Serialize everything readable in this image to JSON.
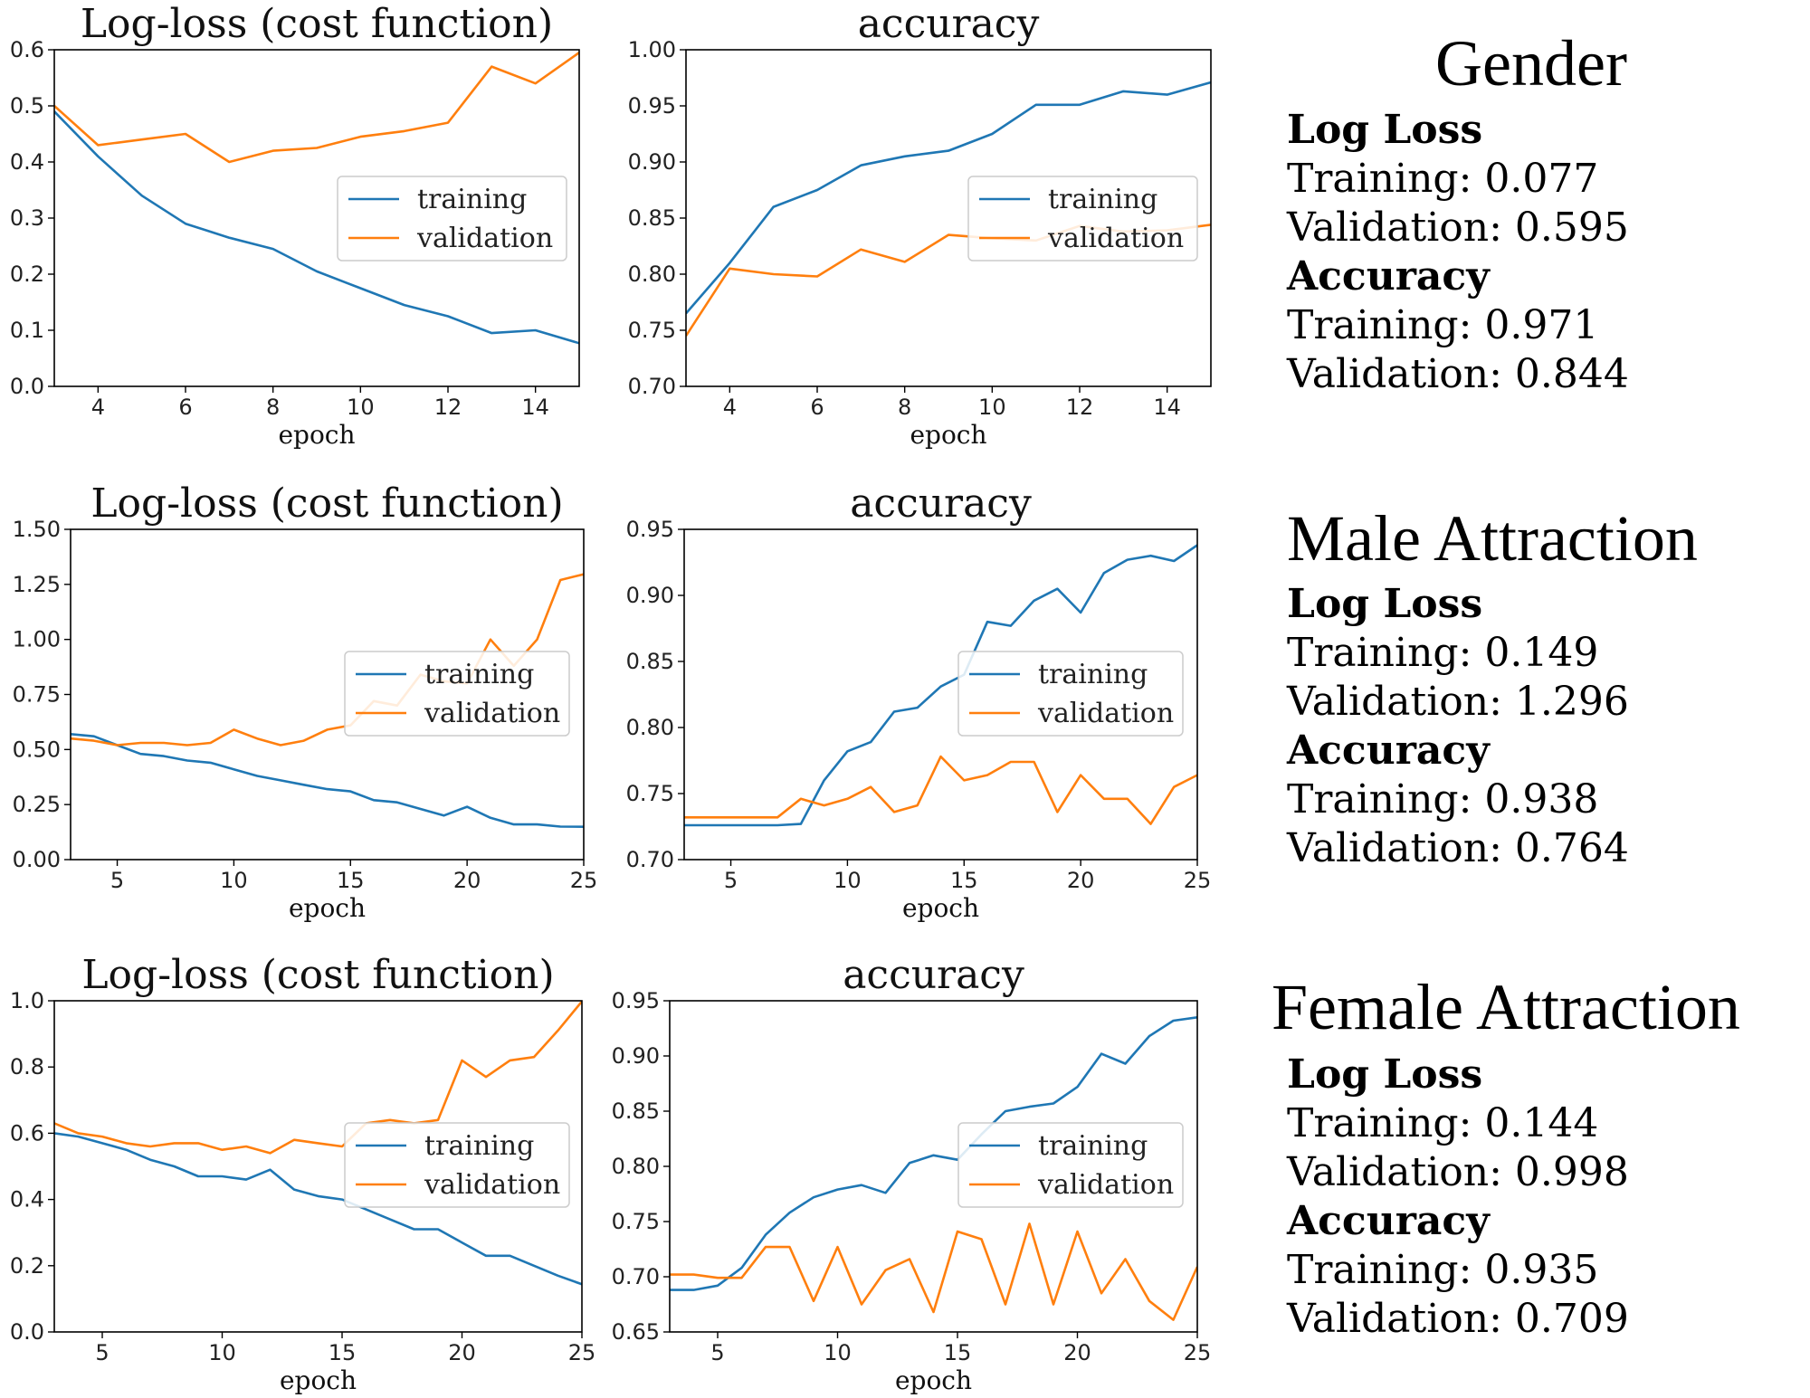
{
  "colors": {
    "training": "#1f77b4",
    "validation": "#ff7f0e",
    "frame": "#000000",
    "legend_border": "#cccccc"
  },
  "legend": {
    "training": "training",
    "validation": "validation"
  },
  "rows": [
    {
      "title": "Gender",
      "heading_loss": "Log Loss",
      "loss_training": "Training: 0.077",
      "loss_validation": "Validation: 0.595",
      "heading_acc": "Accuracy",
      "acc_training": "Training: 0.971",
      "acc_validation": "Validation: 0.844"
    },
    {
      "title": "Male Attraction",
      "heading_loss": "Log Loss",
      "loss_training": "Training: 0.149",
      "loss_validation": "Validation: 1.296",
      "heading_acc": "Accuracy",
      "acc_training": "Training: 0.938",
      "acc_validation": "Validation: 0.764"
    },
    {
      "title": "Female Attraction",
      "heading_loss": "Log Loss",
      "loss_training": "Training: 0.144",
      "loss_validation": "Validation: 0.998",
      "heading_acc": "Accuracy",
      "acc_training": "Training: 0.935",
      "acc_validation": "Validation: 0.709"
    }
  ],
  "chart_data": [
    {
      "type": "line",
      "title": "Log-loss (cost function)",
      "xlabel": "epoch",
      "ylabel": "",
      "xlim": [
        3,
        15
      ],
      "ylim": [
        0.0,
        0.6
      ],
      "xticks": [
        "4",
        "6",
        "8",
        "10",
        "12",
        "14"
      ],
      "yticks": [
        "0.0",
        "0.1",
        "0.2",
        "0.3",
        "0.4",
        "0.5",
        "0.6"
      ],
      "legend_position": "center-right",
      "x": [
        3,
        4,
        5,
        6,
        7,
        8,
        9,
        10,
        11,
        12,
        13,
        14,
        15
      ],
      "series": [
        {
          "name": "training",
          "values": [
            0.49,
            0.41,
            0.34,
            0.29,
            0.265,
            0.245,
            0.205,
            0.175,
            0.145,
            0.125,
            0.095,
            0.1,
            0.077
          ]
        },
        {
          "name": "validation",
          "values": [
            0.5,
            0.43,
            0.44,
            0.45,
            0.4,
            0.42,
            0.425,
            0.445,
            0.455,
            0.47,
            0.57,
            0.54,
            0.595
          ]
        }
      ]
    },
    {
      "type": "line",
      "title": "accuracy",
      "xlabel": "epoch",
      "ylabel": "",
      "xlim": [
        3,
        15
      ],
      "ylim": [
        0.7,
        1.0
      ],
      "xticks": [
        "4",
        "6",
        "8",
        "10",
        "12",
        "14"
      ],
      "yticks": [
        "0.70",
        "0.75",
        "0.80",
        "0.85",
        "0.90",
        "0.95",
        "1.00"
      ],
      "legend_position": "center-right",
      "x": [
        3,
        4,
        5,
        6,
        7,
        8,
        9,
        10,
        11,
        12,
        13,
        14,
        15
      ],
      "series": [
        {
          "name": "training",
          "values": [
            0.765,
            0.81,
            0.86,
            0.875,
            0.897,
            0.905,
            0.91,
            0.925,
            0.951,
            0.951,
            0.963,
            0.96,
            0.971
          ]
        },
        {
          "name": "validation",
          "values": [
            0.745,
            0.805,
            0.8,
            0.798,
            0.822,
            0.811,
            0.835,
            0.832,
            0.83,
            0.843,
            0.838,
            0.839,
            0.844
          ]
        }
      ]
    },
    {
      "type": "line",
      "title": "Log-loss (cost function)",
      "xlabel": "epoch",
      "ylabel": "",
      "xlim": [
        3,
        25
      ],
      "ylim": [
        0.0,
        1.5
      ],
      "xticks": [
        "5",
        "10",
        "15",
        "20",
        "25"
      ],
      "yticks": [
        "0.00",
        "0.25",
        "0.50",
        "0.75",
        "1.00",
        "1.25",
        "1.50"
      ],
      "legend_position": "center-right",
      "x": [
        3,
        4,
        5,
        6,
        7,
        8,
        9,
        10,
        11,
        12,
        13,
        14,
        15,
        16,
        17,
        18,
        19,
        20,
        21,
        22,
        23,
        24,
        25
      ],
      "series": [
        {
          "name": "training",
          "values": [
            0.57,
            0.56,
            0.52,
            0.48,
            0.47,
            0.45,
            0.44,
            0.41,
            0.38,
            0.36,
            0.34,
            0.32,
            0.31,
            0.27,
            0.26,
            0.23,
            0.2,
            0.24,
            0.19,
            0.16,
            0.16,
            0.15,
            0.149
          ]
        },
        {
          "name": "validation",
          "values": [
            0.55,
            0.54,
            0.52,
            0.53,
            0.53,
            0.52,
            0.53,
            0.59,
            0.55,
            0.52,
            0.54,
            0.59,
            0.61,
            0.72,
            0.7,
            0.84,
            0.81,
            0.8,
            1.0,
            0.88,
            1.0,
            1.27,
            1.296
          ]
        }
      ]
    },
    {
      "type": "line",
      "title": "accuracy",
      "xlabel": "epoch",
      "ylabel": "",
      "xlim": [
        3,
        25
      ],
      "ylim": [
        0.7,
        0.95
      ],
      "xticks": [
        "5",
        "10",
        "15",
        "20",
        "25"
      ],
      "yticks": [
        "0.70",
        "0.75",
        "0.80",
        "0.85",
        "0.90",
        "0.95"
      ],
      "legend_position": "center-right",
      "x": [
        3,
        4,
        5,
        6,
        7,
        8,
        9,
        10,
        11,
        12,
        13,
        14,
        15,
        16,
        17,
        18,
        19,
        20,
        21,
        22,
        23,
        24,
        25
      ],
      "series": [
        {
          "name": "training",
          "values": [
            0.726,
            0.726,
            0.726,
            0.726,
            0.726,
            0.727,
            0.76,
            0.782,
            0.789,
            0.812,
            0.815,
            0.831,
            0.84,
            0.88,
            0.877,
            0.896,
            0.905,
            0.887,
            0.917,
            0.927,
            0.93,
            0.926,
            0.938
          ]
        },
        {
          "name": "validation",
          "values": [
            0.732,
            0.732,
            0.732,
            0.732,
            0.732,
            0.746,
            0.741,
            0.746,
            0.755,
            0.736,
            0.741,
            0.778,
            0.76,
            0.764,
            0.774,
            0.774,
            0.736,
            0.764,
            0.746,
            0.746,
            0.727,
            0.755,
            0.764
          ]
        }
      ]
    },
    {
      "type": "line",
      "title": "Log-loss (cost function)",
      "xlabel": "epoch",
      "ylabel": "",
      "xlim": [
        3,
        25
      ],
      "ylim": [
        0.0,
        1.0
      ],
      "xticks": [
        "5",
        "10",
        "15",
        "20",
        "25"
      ],
      "yticks": [
        "0.0",
        "0.2",
        "0.4",
        "0.6",
        "0.8",
        "1.0"
      ],
      "legend_position": "center-right",
      "x": [
        3,
        4,
        5,
        6,
        7,
        8,
        9,
        10,
        11,
        12,
        13,
        14,
        15,
        16,
        17,
        18,
        19,
        20,
        21,
        22,
        23,
        24,
        25
      ],
      "series": [
        {
          "name": "training",
          "values": [
            0.6,
            0.59,
            0.57,
            0.55,
            0.52,
            0.5,
            0.47,
            0.47,
            0.46,
            0.49,
            0.43,
            0.41,
            0.4,
            0.37,
            0.34,
            0.31,
            0.31,
            0.27,
            0.23,
            0.23,
            0.2,
            0.17,
            0.144
          ]
        },
        {
          "name": "validation",
          "values": [
            0.63,
            0.6,
            0.59,
            0.57,
            0.56,
            0.57,
            0.57,
            0.55,
            0.56,
            0.54,
            0.58,
            0.57,
            0.56,
            0.63,
            0.64,
            0.63,
            0.64,
            0.82,
            0.77,
            0.82,
            0.83,
            0.91,
            0.998
          ]
        }
      ]
    },
    {
      "type": "line",
      "title": "accuracy",
      "xlabel": "epoch",
      "ylabel": "",
      "xlim": [
        3,
        25
      ],
      "ylim": [
        0.65,
        0.95
      ],
      "xticks": [
        "5",
        "10",
        "15",
        "20",
        "25"
      ],
      "yticks": [
        "0.65",
        "0.70",
        "0.75",
        "0.80",
        "0.85",
        "0.90",
        "0.95"
      ],
      "legend_position": "center-right",
      "x": [
        3,
        4,
        5,
        6,
        7,
        8,
        9,
        10,
        11,
        12,
        13,
        14,
        15,
        16,
        17,
        18,
        19,
        20,
        21,
        22,
        23,
        24,
        25
      ],
      "series": [
        {
          "name": "training",
          "values": [
            0.688,
            0.688,
            0.692,
            0.708,
            0.738,
            0.758,
            0.772,
            0.779,
            0.783,
            0.776,
            0.803,
            0.81,
            0.806,
            0.829,
            0.85,
            0.854,
            0.857,
            0.872,
            0.902,
            0.893,
            0.918,
            0.932,
            0.935
          ]
        },
        {
          "name": "validation",
          "values": [
            0.702,
            0.702,
            0.699,
            0.699,
            0.727,
            0.727,
            0.678,
            0.727,
            0.675,
            0.706,
            0.716,
            0.668,
            0.741,
            0.734,
            0.675,
            0.748,
            0.675,
            0.741,
            0.685,
            0.716,
            0.678,
            0.661,
            0.709
          ]
        }
      ]
    }
  ]
}
